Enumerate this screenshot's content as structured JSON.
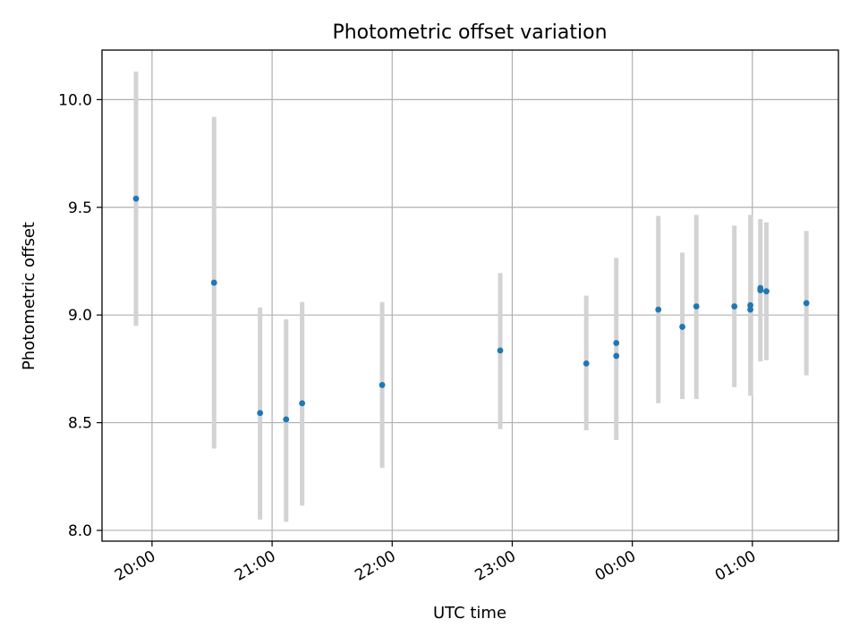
{
  "chart_data": {
    "type": "scatter",
    "title": "Photometric offset variation",
    "xlabel": "UTC time",
    "ylabel": "Photometric offset",
    "x_ticks": [
      "20:00",
      "21:00",
      "22:00",
      "23:00",
      "00:00",
      "01:00"
    ],
    "x_tick_times": [
      "20:00",
      "21:00",
      "22:00",
      "23:00",
      "24:00",
      "25:00"
    ],
    "xlim": [
      "19:35",
      "25:43"
    ],
    "y_ticks": [
      "8.0",
      "8.5",
      "9.0",
      "9.5",
      "10.0"
    ],
    "y_tick_values": [
      8.0,
      8.5,
      9.0,
      9.5,
      10.0
    ],
    "ylim": [
      7.95,
      10.23
    ],
    "grid": true,
    "colors": {
      "marker": "#1f77b4",
      "errorbar": "#d3d3d3",
      "grid": "#b0b0b0"
    },
    "points": [
      {
        "x": "19:52",
        "y": 9.54,
        "err_low": 8.95,
        "err_high": 10.13
      },
      {
        "x": "20:31",
        "y": 9.15,
        "err_low": 8.38,
        "err_high": 9.92
      },
      {
        "x": "20:54",
        "y": 8.545,
        "err_low": 8.05,
        "err_high": 9.035
      },
      {
        "x": "21:07",
        "y": 8.515,
        "err_low": 8.04,
        "err_high": 8.98
      },
      {
        "x": "21:15",
        "y": 8.59,
        "err_low": 8.115,
        "err_high": 9.06
      },
      {
        "x": "21:55",
        "y": 8.675,
        "err_low": 8.29,
        "err_high": 9.06
      },
      {
        "x": "22:54",
        "y": 8.835,
        "err_low": 8.47,
        "err_high": 9.195
      },
      {
        "x": "23:37",
        "y": 8.775,
        "err_low": 8.465,
        "err_high": 9.09
      },
      {
        "x": "23:52",
        "y": 8.87,
        "err_low": 8.42,
        "err_high": 9.265
      },
      {
        "x": "23:52",
        "y": 8.81
      },
      {
        "x": "24:13",
        "y": 9.025,
        "err_low": 8.59,
        "err_high": 9.46
      },
      {
        "x": "24:25",
        "y": 8.945,
        "err_low": 8.61,
        "err_high": 9.29
      },
      {
        "x": "24:32",
        "y": 9.04,
        "err_low": 8.61,
        "err_high": 9.465
      },
      {
        "x": "24:51",
        "y": 9.04,
        "err_low": 8.665,
        "err_high": 9.415
      },
      {
        "x": "24:59",
        "y": 9.045,
        "err_low": 8.625,
        "err_high": 9.465
      },
      {
        "x": "24:59",
        "y": 9.025
      },
      {
        "x": "25:04",
        "y": 9.125,
        "err_low": 8.785,
        "err_high": 9.445
      },
      {
        "x": "25:04",
        "y": 9.115
      },
      {
        "x": "25:07",
        "y": 9.11,
        "err_low": 8.79,
        "err_high": 9.43
      },
      {
        "x": "25:27",
        "y": 9.055,
        "err_low": 8.72,
        "err_high": 9.39
      }
    ]
  }
}
